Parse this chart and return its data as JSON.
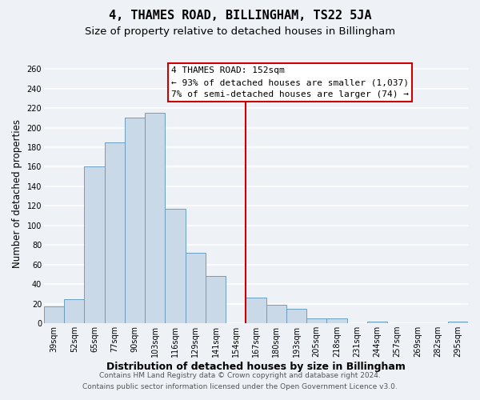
{
  "title": "4, THAMES ROAD, BILLINGHAM, TS22 5JA",
  "subtitle": "Size of property relative to detached houses in Billingham",
  "xlabel": "Distribution of detached houses by size in Billingham",
  "ylabel": "Number of detached properties",
  "bin_labels": [
    "39sqm",
    "52sqm",
    "65sqm",
    "77sqm",
    "90sqm",
    "103sqm",
    "116sqm",
    "129sqm",
    "141sqm",
    "154sqm",
    "167sqm",
    "180sqm",
    "193sqm",
    "205sqm",
    "218sqm",
    "231sqm",
    "244sqm",
    "257sqm",
    "269sqm",
    "282sqm",
    "295sqm"
  ],
  "bar_values": [
    17,
    25,
    160,
    185,
    210,
    215,
    117,
    72,
    48,
    0,
    26,
    19,
    15,
    5,
    5,
    0,
    2,
    0,
    0,
    0,
    2
  ],
  "bar_color": "#c9d9e8",
  "bar_edge_color": "#6a9ec0",
  "vline_color": "#cc0000",
  "vline_x": 9.5,
  "annotation_line1": "4 THAMES ROAD: 152sqm",
  "annotation_line2": "← 93% of detached houses are smaller (1,037)",
  "annotation_line3": "7% of semi-detached houses are larger (74) →",
  "ylim": [
    0,
    265
  ],
  "yticks": [
    0,
    20,
    40,
    60,
    80,
    100,
    120,
    140,
    160,
    180,
    200,
    220,
    240,
    260
  ],
  "footer_line1": "Contains HM Land Registry data © Crown copyright and database right 2024.",
  "footer_line2": "Contains public sector information licensed under the Open Government Licence v3.0.",
  "background_color": "#eef2f7",
  "grid_color": "#ffffff",
  "title_fontsize": 11,
  "subtitle_fontsize": 9.5,
  "xlabel_fontsize": 9,
  "ylabel_fontsize": 8.5,
  "tick_fontsize": 7,
  "annotation_fontsize": 8,
  "footer_fontsize": 6.5
}
